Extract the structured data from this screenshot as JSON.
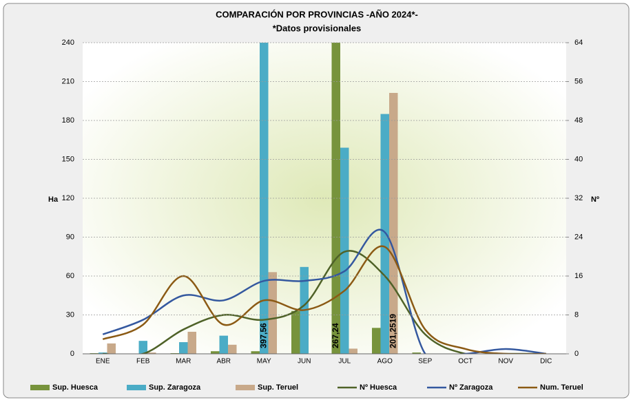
{
  "chart_data": {
    "type": "bar",
    "title": "COMPARACIÓN POR PROVINCIAS -AÑO 2024*-",
    "subtitle": "*Datos provisionales",
    "y_label": "Ha",
    "y2_label": "Nº",
    "categories": [
      "ENE",
      "FEB",
      "MAR",
      "ABR",
      "MAY",
      "JUN",
      "JUL",
      "AGO",
      "SEP",
      "OCT",
      "NOV",
      "DIC"
    ],
    "ylim": [
      0,
      240
    ],
    "yticks": [
      0,
      30,
      60,
      90,
      120,
      150,
      180,
      210,
      240
    ],
    "y2lim": [
      0,
      64
    ],
    "y2ticks": [
      0,
      8,
      16,
      24,
      32,
      40,
      48,
      56,
      64
    ],
    "grid": true,
    "legend": "bottom",
    "series": [
      {
        "name": "Sup. Huesca",
        "type": "bar",
        "color": "#77933c",
        "values": [
          0.5,
          0,
          0.5,
          2,
          2,
          33,
          267.24,
          20,
          1,
          0,
          0,
          0
        ],
        "value_labels": [
          null,
          null,
          null,
          null,
          null,
          null,
          "267,24",
          null,
          null,
          null,
          null,
          null
        ]
      },
      {
        "name": "Sup. Zaragoza",
        "type": "bar",
        "color": "#4bacc6",
        "values": [
          1,
          10,
          9,
          14,
          397.56,
          67,
          159,
          185,
          0,
          0,
          0,
          0
        ],
        "value_labels": [
          null,
          null,
          null,
          null,
          "397,56",
          null,
          null,
          null,
          null,
          null,
          null,
          null
        ]
      },
      {
        "name": "Sup. Teruel",
        "type": "bar",
        "color": "#c8a98a",
        "values": [
          8,
          1,
          17,
          7,
          63,
          0,
          4,
          201.2519,
          0,
          0,
          0,
          0
        ],
        "value_labels": [
          null,
          null,
          null,
          null,
          null,
          null,
          null,
          "201,2519",
          null,
          null,
          null,
          null
        ]
      },
      {
        "name": "Nº Huesca",
        "type": "line",
        "axis": "y2",
        "color": "#4f6228",
        "values": [
          0,
          0,
          5,
          8,
          7,
          10,
          21,
          16,
          4,
          0,
          0,
          0
        ]
      },
      {
        "name": "Nº Zaragoza",
        "type": "line",
        "axis": "y2",
        "color": "#34589f",
        "values": [
          4,
          7,
          12,
          11,
          15,
          15,
          17,
          25,
          0,
          0,
          1,
          0
        ]
      },
      {
        "name": "Num. Teruel",
        "type": "line",
        "axis": "y2",
        "color": "#8b5a14",
        "values": [
          3,
          6,
          16,
          6,
          11,
          9,
          13,
          22,
          5,
          1,
          0,
          0
        ]
      }
    ]
  }
}
